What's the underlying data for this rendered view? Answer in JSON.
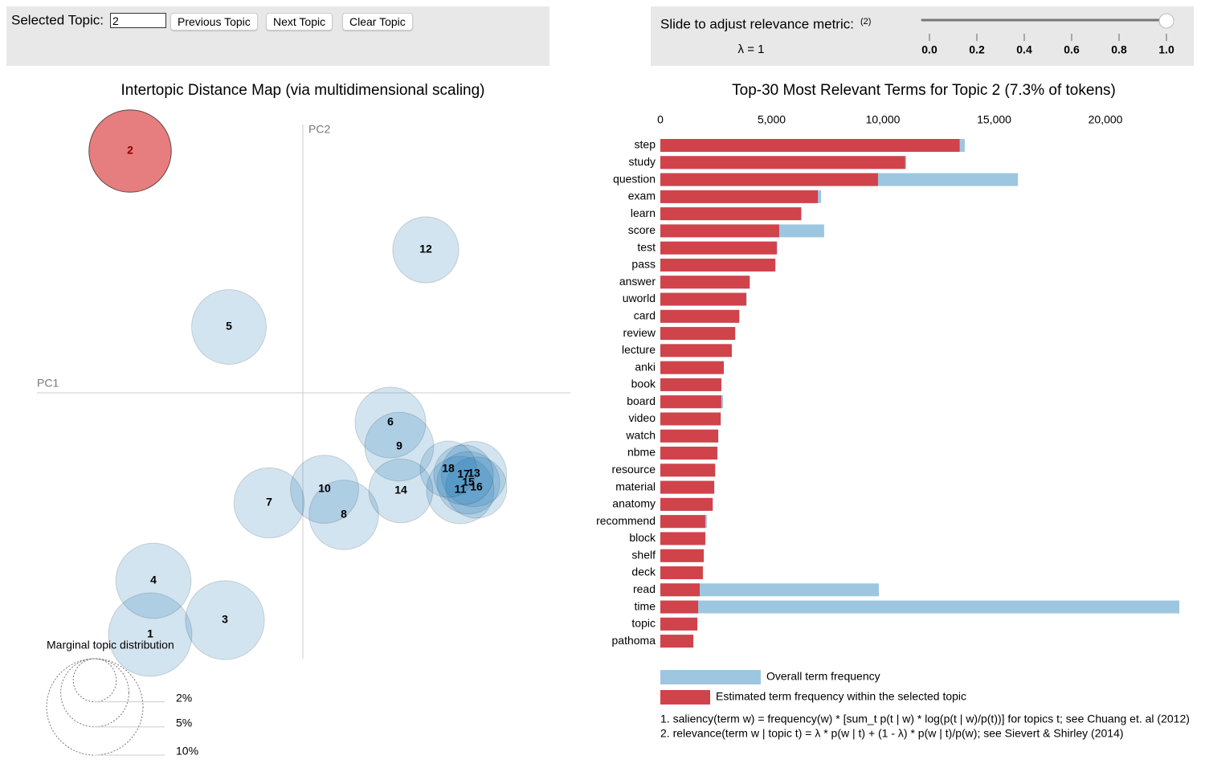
{
  "controls": {
    "label": "Selected Topic:",
    "selected_topic": "2",
    "buttons": [
      "Previous Topic",
      "Next Topic",
      "Clear Topic"
    ]
  },
  "slider": {
    "label": "Slide to adjust relevance metric:",
    "footnote_ref": "(2)",
    "lambda": 1,
    "lambda_label": "λ = 1",
    "ticks": [
      {
        "value": 0,
        "label": "0.0"
      },
      {
        "value": 0.2,
        "label": "0.2"
      },
      {
        "value": 0.4,
        "label": "0.4"
      },
      {
        "value": 0.6,
        "label": "0.6"
      },
      {
        "value": 0.8,
        "label": "0.8"
      },
      {
        "value": 1,
        "label": "1.0"
      }
    ]
  },
  "chart_data": [
    {
      "type": "scatter",
      "title": "Intertopic Distance Map (via multidimensional scaling)",
      "xlabel": "PC1",
      "ylabel": "PC2",
      "xlim": [
        -0.331,
        0.333
      ],
      "ylim": [
        -0.331,
        0.334
      ],
      "topics": [
        {
          "label": "1",
          "x": -0.19,
          "y": -0.301,
          "size": 7.5
        },
        {
          "label": "2",
          "x": -0.215,
          "y": 0.301,
          "size": 7.3
        },
        {
          "label": "3",
          "x": -0.097,
          "y": -0.283,
          "size": 6.7
        },
        {
          "label": "4",
          "x": -0.186,
          "y": -0.234,
          "size": 6.1
        },
        {
          "label": "5",
          "x": -0.092,
          "y": 0.082,
          "size": 6.0
        },
        {
          "label": "6",
          "x": 0.109,
          "y": -0.037,
          "size": 5.4
        },
        {
          "label": "7",
          "x": -0.042,
          "y": -0.137,
          "size": 5.3
        },
        {
          "label": "8",
          "x": 0.051,
          "y": -0.152,
          "size": 5.2
        },
        {
          "label": "9",
          "x": 0.12,
          "y": -0.067,
          "size": 5.1
        },
        {
          "label": "10",
          "x": 0.027,
          "y": -0.12,
          "size": 5.0
        },
        {
          "label": "11",
          "x": 0.196,
          "y": -0.121,
          "size": 4.9
        },
        {
          "label": "12",
          "x": 0.153,
          "y": 0.178,
          "size": 4.7
        },
        {
          "label": "13",
          "x": 0.213,
          "y": -0.101,
          "size": 4.6
        },
        {
          "label": "14",
          "x": 0.122,
          "y": -0.122,
          "size": 4.4
        },
        {
          "label": "15",
          "x": 0.206,
          "y": -0.112,
          "size": 4.2
        },
        {
          "label": "16",
          "x": 0.216,
          "y": -0.118,
          "size": 4.0
        },
        {
          "label": "17",
          "x": 0.2,
          "y": -0.102,
          "size": 3.8
        },
        {
          "label": "18",
          "x": 0.181,
          "y": -0.095,
          "size": 3.4
        }
      ],
      "color": "#1f77b4",
      "selected_color": "#d62728",
      "size_legend": {
        "title": "Marginal topic distribution",
        "sizes": [
          {
            "value": 2,
            "label": "2%"
          },
          {
            "value": 5,
            "label": "5%"
          },
          {
            "value": 10,
            "label": "10%"
          }
        ]
      }
    },
    {
      "type": "bar",
      "orientation": "horizontal",
      "barmode": "overlay",
      "title": "Top-30 Most Relevant Terms for Topic 2 (7.3% of tokens)",
      "categories": [
        "step",
        "study",
        "question",
        "exam",
        "learn",
        "score",
        "test",
        "pass",
        "answer",
        "uworld",
        "card",
        "review",
        "lecture",
        "anki",
        "book",
        "board",
        "video",
        "watch",
        "nbme",
        "resource",
        "material",
        "anatomy",
        "recommend",
        "block",
        "shelf",
        "deck",
        "read",
        "time",
        "topic",
        "pathoma"
      ],
      "series": [
        {
          "name": "Overall term frequency",
          "color": "#9dc6e0",
          "values": [
            13680,
            11050,
            16070,
            7220,
            6350,
            7360,
            5260,
            5180,
            4030,
            3880,
            3560,
            3370,
            3220,
            2860,
            2750,
            2820,
            2720,
            2610,
            2570,
            2470,
            2430,
            2360,
            2090,
            2030,
            1960,
            1920,
            9820,
            23320,
            1670,
            1490
          ]
        },
        {
          "name": "Estimated term frequency within the selected topic",
          "color": "#d0434b",
          "values": [
            13450,
            11000,
            9780,
            7080,
            6320,
            5340,
            5230,
            5160,
            4010,
            3860,
            3540,
            3360,
            3210,
            2850,
            2740,
            2740,
            2710,
            2600,
            2560,
            2460,
            2420,
            2350,
            2020,
            2020,
            1950,
            1910,
            1770,
            1700,
            1660,
            1480
          ]
        }
      ],
      "xlim": [
        0,
        23500
      ],
      "xticks": [
        0,
        {
          "value": 5000,
          "label": "5,000"
        },
        {
          "value": 10000,
          "label": "10,000"
        },
        {
          "value": 15000,
          "label": "15,000"
        },
        {
          "value": 20000,
          "label": "20,000"
        }
      ],
      "footnotes": [
        "1. saliency(term w) = frequency(w) * [sum_t p(t | w) * log(p(t | w)/p(t))] for topics t; see Chuang et. al (2012)",
        "2. relevance(term w | topic t) = λ * p(w | t) + (1 - λ) * p(w | t)/p(w); see Sievert & Shirley (2014)"
      ]
    }
  ]
}
